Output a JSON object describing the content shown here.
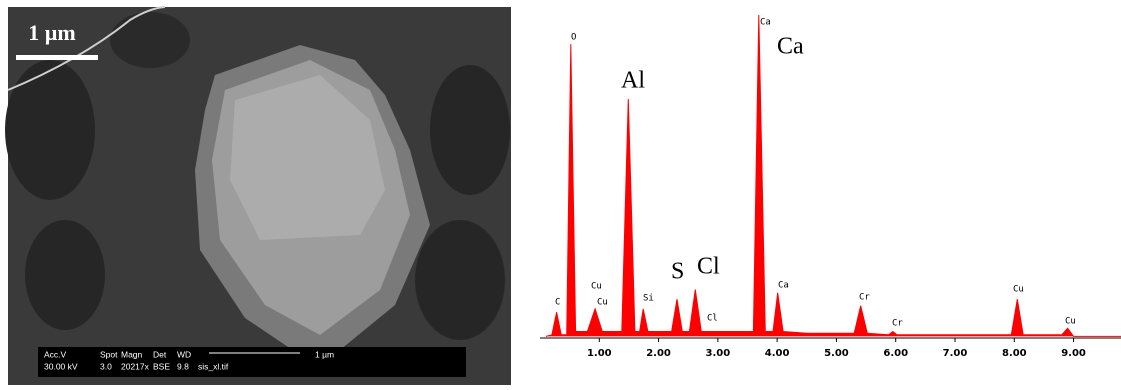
{
  "image": {
    "scale_label": "1 µm",
    "info_headers": [
      "Acc.V",
      "Spot",
      "Magn",
      "Det",
      "WD"
    ],
    "info_values": [
      "30.00 kV",
      "3.0",
      "20217x",
      "BSE",
      "9.8",
      "sis_xl.tif"
    ],
    "info_scale": "1 µm"
  },
  "chart_data": {
    "type": "area",
    "color": "#ff0000",
    "x": [
      0.1,
      0.2,
      0.28,
      0.36,
      0.45,
      0.52,
      0.6,
      0.8,
      0.93,
      1.05,
      1.38,
      1.49,
      1.6,
      1.68,
      1.74,
      1.82,
      2.22,
      2.31,
      2.4,
      2.52,
      2.62,
      2.72,
      3.0,
      3.6,
      3.69,
      3.8,
      3.93,
      4.01,
      4.1,
      4.5,
      5.3,
      5.41,
      5.52,
      5.88,
      5.95,
      6.02,
      7.0,
      7.95,
      8.05,
      8.15,
      8.8,
      8.9,
      9.0,
      9.8
    ],
    "values": [
      0.5,
      1,
      8,
      1,
      1,
      91,
      2,
      2,
      9,
      2,
      2,
      74,
      2,
      2,
      9,
      2,
      2,
      12,
      2,
      2,
      15,
      2,
      2,
      2,
      100,
      2,
      2,
      14,
      2,
      1.5,
      1.5,
      10,
      1.5,
      1,
      2,
      1,
      1,
      1,
      12,
      1,
      1,
      3,
      0.5,
      0.5
    ],
    "xlim": [
      0,
      9.8
    ],
    "ylim": [
      0,
      100
    ],
    "xticks": [
      {
        "value": 1,
        "label": "1.00"
      },
      {
        "value": 2,
        "label": "2.00"
      },
      {
        "value": 3,
        "label": "3.00"
      },
      {
        "value": 4,
        "label": "4.00"
      },
      {
        "value": 5,
        "label": "5.00"
      },
      {
        "value": 6,
        "label": "6.00"
      },
      {
        "value": 7,
        "label": "7.00"
      },
      {
        "value": 8,
        "label": "8.00"
      },
      {
        "value": 9,
        "label": "9.00"
      }
    ],
    "peak_labels": [
      "C",
      "O",
      "Cu",
      "Cu",
      "Si",
      "Cl",
      "Ca",
      "Ca",
      "Cr",
      "Cr",
      "Cu",
      "Cu"
    ],
    "element_labels": [
      "Al",
      "S",
      "Cl",
      "Ca"
    ]
  }
}
